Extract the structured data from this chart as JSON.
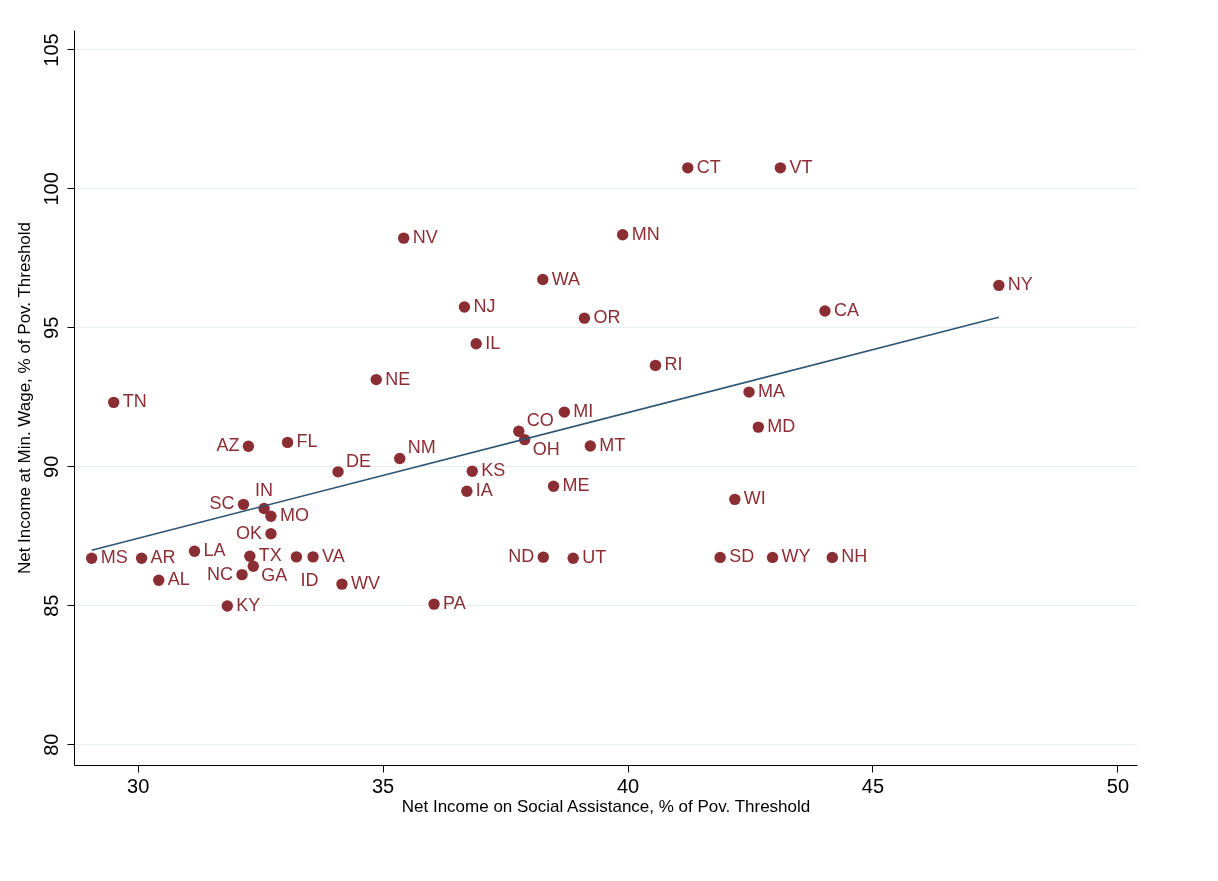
{
  "chart_data": {
    "type": "scatter",
    "xlabel": "Net Income on Social Assistance, % of Pov. Threshold",
    "ylabel": "Net Income at Min. Wage, % of Pov. Threshold",
    "xlim": [
      28.7,
      50.4
    ],
    "ylim": [
      79.25,
      105.7
    ],
    "xticks": [
      30,
      35,
      40,
      45,
      50
    ],
    "yticks": [
      80,
      85,
      90,
      95,
      100,
      105
    ],
    "grid": "y",
    "marker": "circle",
    "series": [
      {
        "color": "#8b2e34",
        "x": [
          29.06,
          30.08,
          30.43,
          31.16,
          29.51,
          32.26,
          33.06,
          32.16,
          32.58,
          32.72,
          32.72,
          32.29,
          32.36,
          32.13,
          33.24,
          33.58,
          34.17,
          31.83,
          34.09,
          35.35,
          34.87,
          35.43,
          36.67,
          36.91,
          38.27,
          39.12,
          39.9,
          36.83,
          36.72,
          38.49,
          38.71,
          37.78,
          37.9,
          39.24,
          36.05,
          38.28,
          38.89,
          41.23,
          43.12,
          47.58,
          44.03,
          40.57,
          42.48,
          42.67,
          42.19,
          41.89,
          42.96,
          44.18
        ],
        "values": [
          86.69,
          86.69,
          85.9,
          86.94,
          92.3,
          90.72,
          90.86,
          88.63,
          88.48,
          88.2,
          87.57,
          86.76,
          86.4,
          86.1,
          86.74,
          86.74,
          85.76,
          84.97,
          89.8,
          90.28,
          93.12,
          98.21,
          95.73,
          94.41,
          96.72,
          95.33,
          98.33,
          89.82,
          89.1,
          89.28,
          91.95,
          91.26,
          90.96,
          90.73,
          85.04,
          86.73,
          86.69,
          100.74,
          100.74,
          96.51,
          95.59,
          93.63,
          92.67,
          91.41,
          88.81,
          86.72,
          86.72,
          86.72
        ]
      },
      {
        "type": "line",
        "marker": "none",
        "color": "#2d5572",
        "x": [
          29.06,
          47.58
        ],
        "values": [
          86.98,
          95.36
        ]
      }
    ],
    "annotations": [
      {
        "text": "MS",
        "x": 29.06,
        "y": 86.69
      },
      {
        "text": "AR",
        "x": 30.08,
        "y": 86.69
      },
      {
        "text": "AL",
        "x": 30.43,
        "y": 85.9
      },
      {
        "text": "LA",
        "x": 31.16,
        "y": 86.94
      },
      {
        "text": "TN",
        "x": 29.51,
        "y": 92.3
      },
      {
        "text": "AZ",
        "x": 32.26,
        "y": 90.72
      },
      {
        "text": "FL",
        "x": 33.06,
        "y": 90.86
      },
      {
        "text": "SC",
        "x": 32.16,
        "y": 88.63
      },
      {
        "text": "IN",
        "x": 32.58,
        "y": 88.48
      },
      {
        "text": "MO",
        "x": 32.72,
        "y": 88.2
      },
      {
        "text": "OK",
        "x": 32.72,
        "y": 87.57
      },
      {
        "text": "TX",
        "x": 32.29,
        "y": 86.76
      },
      {
        "text": "GA",
        "x": 32.36,
        "y": 86.4
      },
      {
        "text": "NC",
        "x": 32.13,
        "y": 86.1
      },
      {
        "text": "ID",
        "x": 33.24,
        "y": 86.74
      },
      {
        "text": "VA",
        "x": 33.58,
        "y": 86.74
      },
      {
        "text": "WV",
        "x": 34.17,
        "y": 85.76
      },
      {
        "text": "KY",
        "x": 31.83,
        "y": 84.97
      },
      {
        "text": "DE",
        "x": 34.09,
        "y": 89.8
      },
      {
        "text": "NM",
        "x": 35.35,
        "y": 90.28
      },
      {
        "text": "NE",
        "x": 34.87,
        "y": 93.12
      },
      {
        "text": "NV",
        "x": 35.43,
        "y": 98.21
      },
      {
        "text": "NJ",
        "x": 36.67,
        "y": 95.73
      },
      {
        "text": "IL",
        "x": 36.91,
        "y": 94.41
      },
      {
        "text": "WA",
        "x": 38.27,
        "y": 96.72
      },
      {
        "text": "OR",
        "x": 39.12,
        "y": 95.33
      },
      {
        "text": "MN",
        "x": 39.9,
        "y": 98.33
      },
      {
        "text": "KS",
        "x": 36.83,
        "y": 89.82
      },
      {
        "text": "IA",
        "x": 36.72,
        "y": 89.1
      },
      {
        "text": "ME",
        "x": 38.49,
        "y": 89.28
      },
      {
        "text": "MI",
        "x": 38.71,
        "y": 91.95
      },
      {
        "text": "CO",
        "x": 37.78,
        "y": 91.26
      },
      {
        "text": "OH",
        "x": 37.9,
        "y": 90.96
      },
      {
        "text": "MT",
        "x": 39.24,
        "y": 90.73
      },
      {
        "text": "PA",
        "x": 36.05,
        "y": 85.04
      },
      {
        "text": "ND",
        "x": 38.28,
        "y": 86.73
      },
      {
        "text": "UT",
        "x": 38.89,
        "y": 86.69
      },
      {
        "text": "CT",
        "x": 41.23,
        "y": 100.74
      },
      {
        "text": "VT",
        "x": 43.12,
        "y": 100.74
      },
      {
        "text": "NY",
        "x": 47.58,
        "y": 96.51
      },
      {
        "text": "CA",
        "x": 44.03,
        "y": 95.59
      },
      {
        "text": "RI",
        "x": 40.57,
        "y": 93.63
      },
      {
        "text": "MA",
        "x": 42.48,
        "y": 92.67
      },
      {
        "text": "MD",
        "x": 42.67,
        "y": 91.41
      },
      {
        "text": "WI",
        "x": 42.19,
        "y": 88.81
      },
      {
        "text": "SD",
        "x": 41.89,
        "y": 86.72
      },
      {
        "text": "WY",
        "x": 42.96,
        "y": 86.72
      },
      {
        "text": "NH",
        "x": 44.18,
        "y": 86.72
      }
    ]
  }
}
